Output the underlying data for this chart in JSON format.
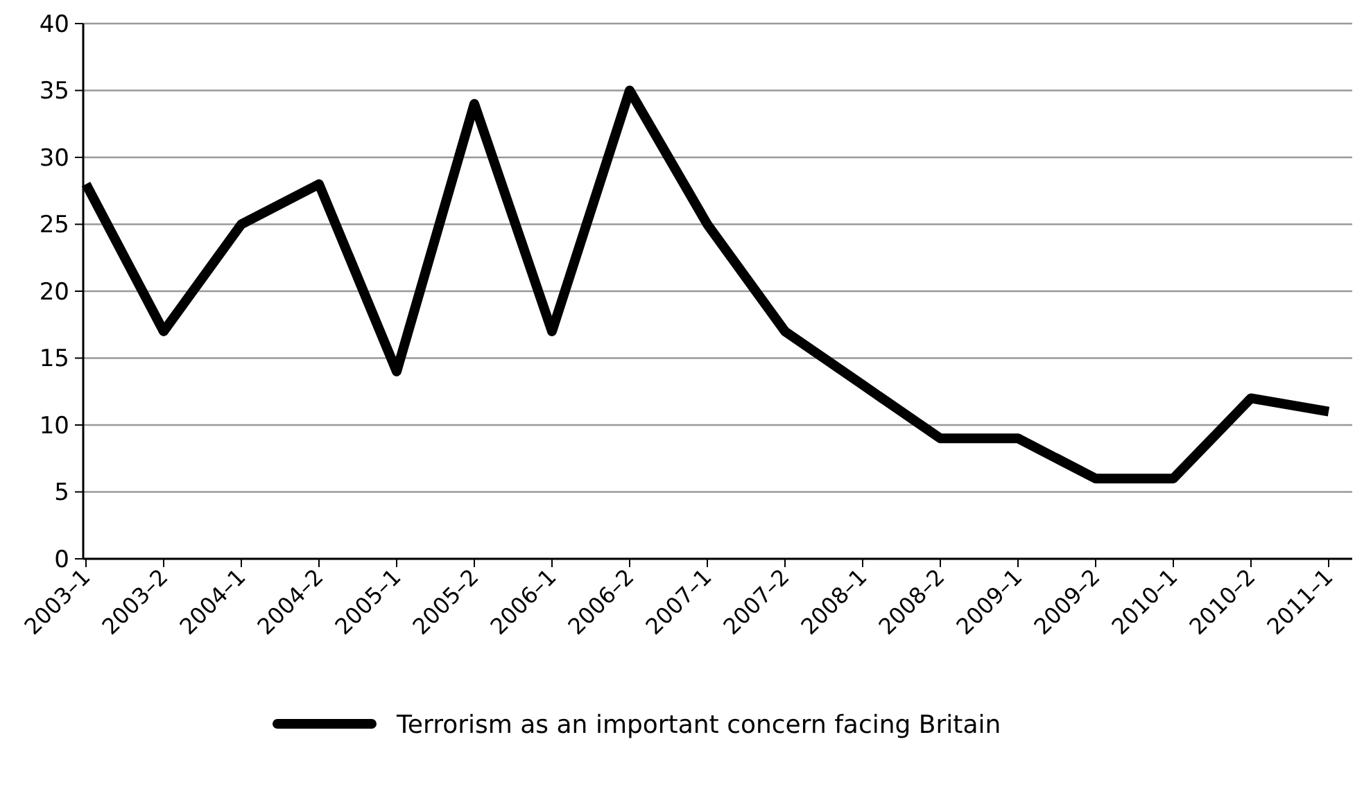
{
  "chart_data": {
    "type": "line",
    "categories": [
      "2003–1",
      "2003–2",
      "2004–1",
      "2004–2",
      "2005–1",
      "2005–2",
      "2006–1",
      "2006–2",
      "2007–1",
      "2007–2",
      "2008–1",
      "2008–2",
      "2009–1",
      "2009–2",
      "2010–1",
      "2010–2",
      "2011–1"
    ],
    "series": [
      {
        "name": "Terrorism as an important concern facing Britain",
        "color": "#000000",
        "values": [
          28,
          17,
          25,
          28,
          14,
          34,
          17,
          35,
          25,
          17,
          13,
          9,
          9,
          6,
          6,
          12,
          11
        ]
      }
    ],
    "ylim": [
      0,
      40
    ],
    "yticks": [
      0,
      5,
      10,
      15,
      20,
      25,
      30,
      35,
      40
    ],
    "grid": "y",
    "legend": "bottom",
    "marker": "none",
    "line_style": "solid"
  }
}
